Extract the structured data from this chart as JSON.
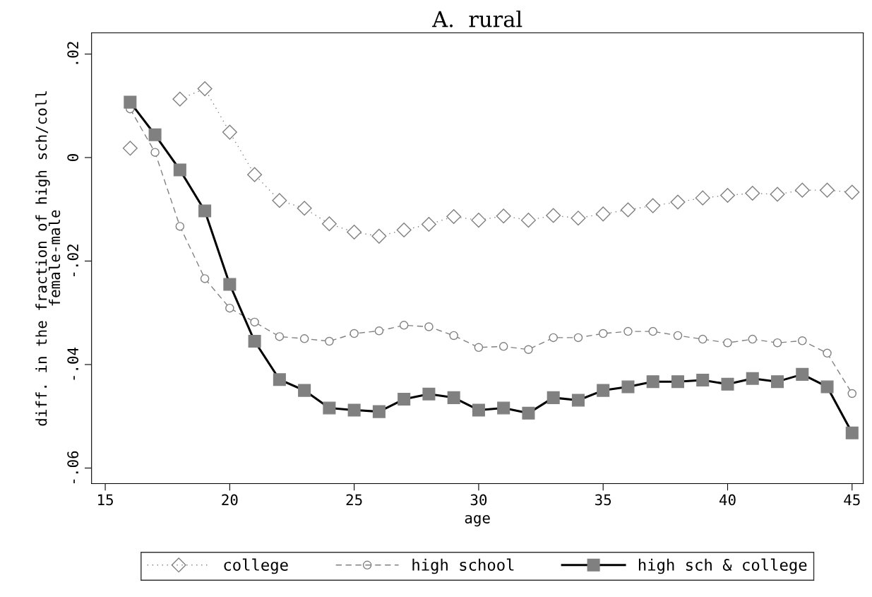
{
  "chart_data": {
    "type": "line",
    "title": "A.  rural",
    "xlabel": "age",
    "ylabel": "diff. in the fraction of high sch/coll\nfemale-male",
    "x": [
      16,
      17,
      18,
      19,
      20,
      21,
      22,
      23,
      24,
      25,
      26,
      27,
      28,
      29,
      30,
      31,
      32,
      33,
      34,
      35,
      36,
      37,
      38,
      39,
      40,
      41,
      42,
      43,
      44,
      45
    ],
    "series": [
      {
        "name": "college",
        "color": "#808080",
        "marker": "diamond",
        "line_style": "dotted",
        "values": [
          0.0018,
          null,
          0.0113,
          0.0133,
          0.0049,
          -0.0033,
          -0.0083,
          -0.0098,
          -0.0128,
          -0.0144,
          -0.0152,
          -0.014,
          -0.0129,
          -0.0114,
          -0.0121,
          -0.0113,
          -0.0121,
          -0.0112,
          -0.0117,
          -0.0109,
          -0.0101,
          -0.0093,
          -0.0086,
          -0.0078,
          -0.0073,
          -0.0069,
          -0.0071,
          -0.0063,
          -0.0063,
          -0.0067
        ]
      },
      {
        "name": "high school",
        "color": "#808080",
        "marker": "circle",
        "line_style": "dashed",
        "values": [
          0.0094,
          0.001,
          -0.0133,
          -0.0234,
          -0.0291,
          -0.0318,
          -0.0346,
          -0.035,
          -0.0355,
          -0.034,
          -0.0335,
          -0.0324,
          -0.0327,
          -0.0344,
          -0.0367,
          -0.0365,
          -0.0371,
          -0.0348,
          -0.0348,
          -0.034,
          -0.0336,
          -0.0336,
          -0.0344,
          -0.0351,
          -0.0358,
          -0.0351,
          -0.0358,
          -0.0354,
          -0.0378,
          -0.0456
        ]
      },
      {
        "name": "high sch & college",
        "color": "#000000",
        "marker": "square",
        "line_style": "solid",
        "values": [
          0.0107,
          0.0044,
          -0.0024,
          -0.0103,
          -0.0245,
          -0.0355,
          -0.0429,
          -0.045,
          -0.0484,
          -0.0488,
          -0.0491,
          -0.0467,
          -0.0457,
          -0.0464,
          -0.0488,
          -0.0484,
          -0.0494,
          -0.0464,
          -0.0469,
          -0.045,
          -0.0443,
          -0.0433,
          -0.0433,
          -0.043,
          -0.0438,
          -0.0427,
          -0.0433,
          -0.0419,
          -0.0443,
          -0.0532
        ]
      }
    ],
    "xlim": [
      14.45,
      45.45
    ],
    "xticks": [
      15,
      20,
      25,
      30,
      35,
      40,
      45
    ],
    "ylim": [
      -0.063,
      0.0241
    ],
    "yticks": [
      {
        "value": 0.02,
        "label": ".02"
      },
      0,
      {
        "value": -0.02,
        "label": "-.02"
      },
      {
        "value": -0.04,
        "label": "-.04"
      },
      {
        "value": -0.06,
        "label": "-.06"
      }
    ],
    "grid": false,
    "legend": "bottom"
  }
}
